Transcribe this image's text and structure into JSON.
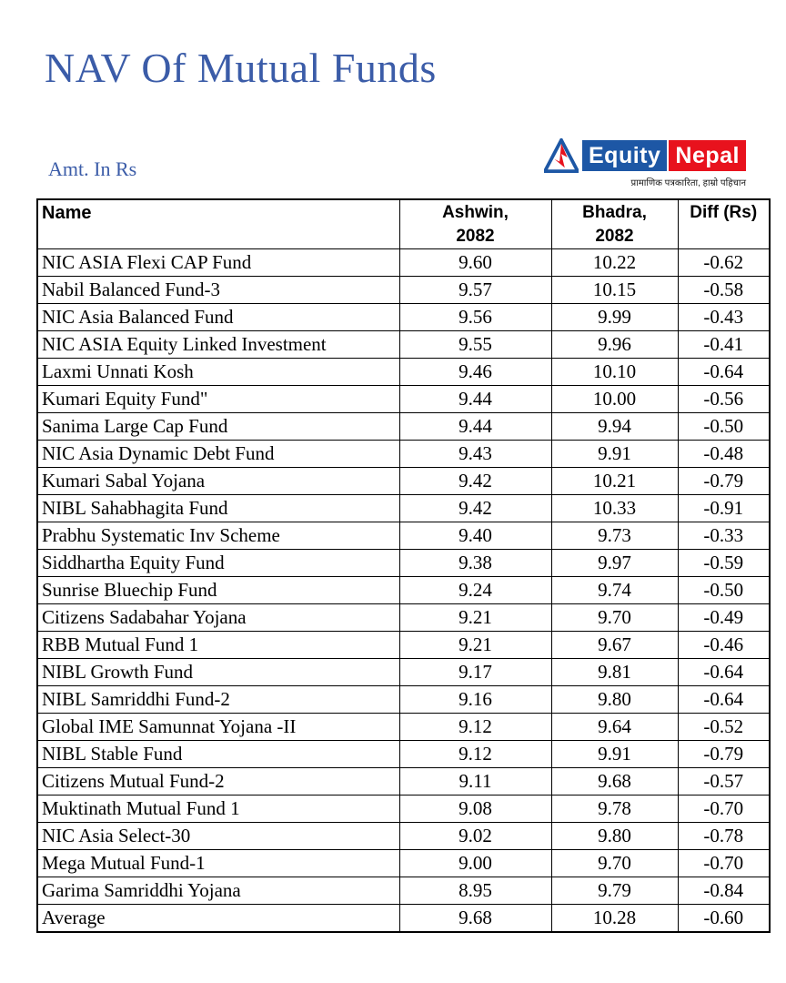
{
  "page": {
    "title": "NAV Of Mutual Funds",
    "amount_label": "Amt. In Rs"
  },
  "colors": {
    "heading_blue": "#3b5ca8",
    "logo_blue": "#1d57a5",
    "logo_red": "#e8121d",
    "table_border": "#000000"
  },
  "logo": {
    "equity_label": "Equity",
    "nepal_label": "Nepal",
    "tagline": "प्रामाणिक पत्रकारिता, हाम्रो पहिचान",
    "icon": "mountain-triangle-icon"
  },
  "table": {
    "headers": [
      "Name",
      "Ashwin,\n2082",
      "Bhadra,\n2082",
      "Diff (Rs)"
    ],
    "rows": [
      [
        "NIC ASIA Flexi CAP Fund",
        "9.60",
        "10.22",
        "-0.62"
      ],
      [
        "Nabil Balanced Fund-3",
        "9.57",
        "10.15",
        "-0.58"
      ],
      [
        "NIC Asia Balanced Fund",
        "9.56",
        "9.99",
        "-0.43"
      ],
      [
        "NIC ASIA Equity Linked Investment",
        "9.55",
        "9.96",
        "-0.41"
      ],
      [
        "Laxmi Unnati Kosh",
        "9.46",
        "10.10",
        "-0.64"
      ],
      [
        "Kumari Equity Fund\"",
        "9.44",
        "10.00",
        "-0.56"
      ],
      [
        "Sanima Large Cap Fund",
        "9.44",
        "9.94",
        "-0.50"
      ],
      [
        "NIC Asia Dynamic Debt Fund",
        "9.43",
        "9.91",
        "-0.48"
      ],
      [
        "Kumari Sabal Yojana",
        "9.42",
        "10.21",
        "-0.79"
      ],
      [
        "NIBL Sahabhagita Fund",
        "9.42",
        "10.33",
        "-0.91"
      ],
      [
        "Prabhu Systematic Inv Scheme",
        "9.40",
        "9.73",
        "-0.33"
      ],
      [
        "Siddhartha Equity Fund",
        "9.38",
        "9.97",
        "-0.59"
      ],
      [
        "Sunrise Bluechip Fund",
        "9.24",
        "9.74",
        "-0.50"
      ],
      [
        "Citizens Sadabahar Yojana",
        "9.21",
        "9.70",
        "-0.49"
      ],
      [
        "RBB Mutual Fund 1",
        "9.21",
        "9.67",
        "-0.46"
      ],
      [
        "NIBL Growth Fund",
        "9.17",
        "9.81",
        "-0.64"
      ],
      [
        "NIBL Samriddhi Fund-2",
        "9.16",
        "9.80",
        "-0.64"
      ],
      [
        "Global IME Samunnat Yojana -II",
        "9.12",
        "9.64",
        "-0.52"
      ],
      [
        "NIBL Stable Fund",
        "9.12",
        "9.91",
        "-0.79"
      ],
      [
        "Citizens Mutual Fund-2",
        "9.11",
        "9.68",
        "-0.57"
      ],
      [
        "Muktinath Mutual Fund 1",
        "9.08",
        "9.78",
        "-0.70"
      ],
      [
        "NIC Asia Select-30",
        "9.02",
        "9.80",
        "-0.78"
      ],
      [
        "Mega Mutual Fund-1",
        "9.00",
        "9.70",
        "-0.70"
      ],
      [
        "Garima Samriddhi Yojana",
        "8.95",
        "9.79",
        "-0.84"
      ],
      [
        "Average",
        "9.68",
        "10.28",
        "-0.60"
      ]
    ]
  }
}
